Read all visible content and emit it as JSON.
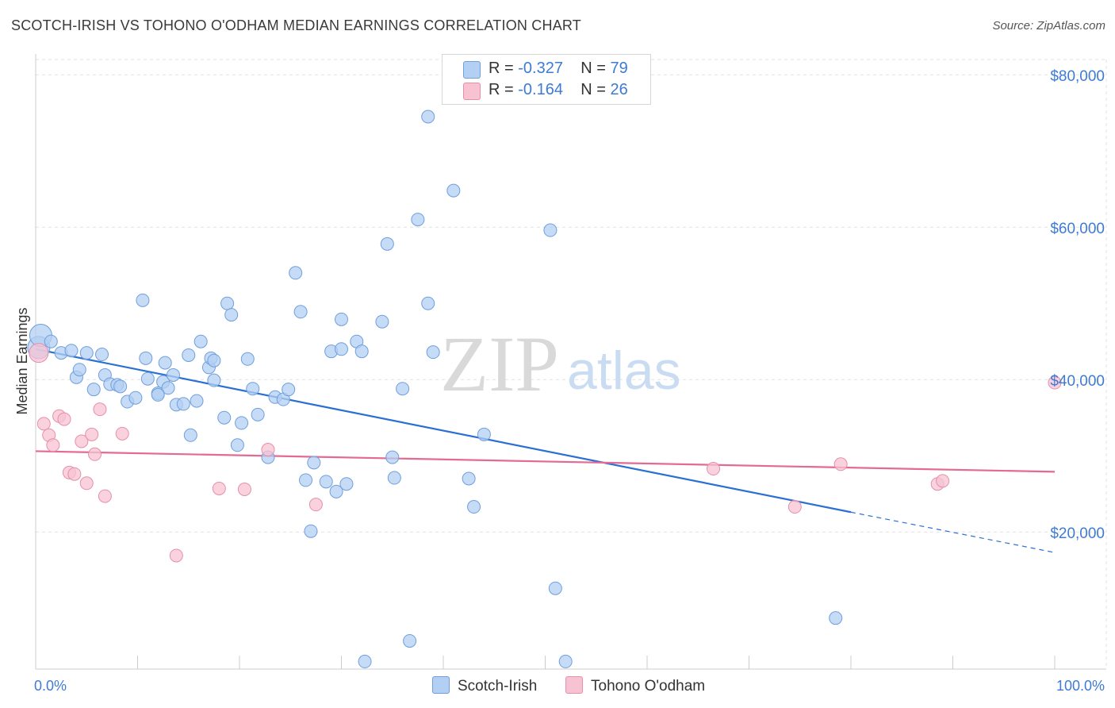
{
  "title": "SCOTCH-IRISH VS TOHONO O'ODHAM MEDIAN EARNINGS CORRELATION CHART",
  "source": "Source: ZipAtlas.com",
  "watermark": {
    "zip": "ZIP",
    "atlas": "atlas"
  },
  "legend": [
    {
      "r_label": "R =",
      "r_value": "-0.327",
      "n_label": "N =",
      "n_value": "79"
    },
    {
      "r_label": "R =",
      "r_value": "-0.164",
      "n_label": "N =",
      "n_value": "26"
    }
  ],
  "colors": {
    "blue_fill": "#b3cff3",
    "blue_stroke": "#6f9fdc",
    "blue_line": "#2a6fd4",
    "pink_fill": "#f7c3d3",
    "pink_stroke": "#e58fab",
    "pink_line": "#e36a92",
    "tick_text": "#3d7bd4"
  },
  "chart_data": {
    "type": "scatter",
    "title": "SCOTCH-IRISH VS TOHONO O'ODHAM MEDIAN EARNINGS CORRELATION CHART",
    "xlabel": "",
    "ylabel": "Median Earnings",
    "xlim": [
      0,
      100
    ],
    "ylim": [
      2000,
      82000
    ],
    "x_tick_labels": [
      "0.0%",
      "100.0%"
    ],
    "y_ticks": [
      20000,
      40000,
      60000,
      80000
    ],
    "y_tick_labels": [
      "$20,000",
      "$40,000",
      "$60,000",
      "$80,000"
    ],
    "grid": true,
    "legend_position": "top-center and bottom",
    "series": [
      {
        "name": "Scotch-Irish",
        "points": [
          [
            0.3,
            44200
          ],
          [
            0.5,
            45800
          ],
          [
            1.5,
            45000
          ],
          [
            2.5,
            43500
          ],
          [
            3.5,
            43800
          ],
          [
            4,
            40300
          ],
          [
            4.3,
            41300
          ],
          [
            5,
            43500
          ],
          [
            5.7,
            38700
          ],
          [
            6.5,
            43300
          ],
          [
            6.8,
            40600
          ],
          [
            7.3,
            39400
          ],
          [
            8,
            39300
          ],
          [
            8.3,
            39100
          ],
          [
            9,
            37100
          ],
          [
            9.8,
            37600
          ],
          [
            10.5,
            50400
          ],
          [
            10.8,
            42800
          ],
          [
            11,
            40100
          ],
          [
            12,
            38200
          ],
          [
            12.5,
            39700
          ],
          [
            12.7,
            42200
          ],
          [
            13,
            38900
          ],
          [
            13.5,
            40600
          ],
          [
            13.8,
            36700
          ],
          [
            14.5,
            36800
          ],
          [
            15,
            43200
          ],
          [
            15.2,
            32700
          ],
          [
            15.8,
            37200
          ],
          [
            16.2,
            45000
          ],
          [
            17,
            41600
          ],
          [
            17.2,
            42800
          ],
          [
            17.5,
            39900
          ],
          [
            18.5,
            35000
          ],
          [
            18.8,
            50000
          ],
          [
            19.2,
            48500
          ],
          [
            19.8,
            31400
          ],
          [
            20.2,
            34300
          ],
          [
            20.8,
            42700
          ],
          [
            21.3,
            38800
          ],
          [
            21.8,
            35400
          ],
          [
            22.8,
            29800
          ],
          [
            23.5,
            37700
          ],
          [
            24.3,
            37400
          ],
          [
            24.8,
            38700
          ],
          [
            25.5,
            54000
          ],
          [
            26,
            48900
          ],
          [
            26.5,
            26800
          ],
          [
            27,
            20100
          ],
          [
            27.3,
            29100
          ],
          [
            28.5,
            26600
          ],
          [
            29,
            43700
          ],
          [
            29.5,
            25300
          ],
          [
            30,
            47900
          ],
          [
            30.5,
            26300
          ],
          [
            31.5,
            45000
          ],
          [
            32,
            43700
          ],
          [
            32.3,
            3000
          ],
          [
            34,
            47600
          ],
          [
            34.5,
            57800
          ],
          [
            35,
            29800
          ],
          [
            35.2,
            27100
          ],
          [
            36,
            38800
          ],
          [
            36.7,
            5700
          ],
          [
            37.5,
            61000
          ],
          [
            38.5,
            50000
          ],
          [
            39,
            43600
          ],
          [
            41,
            64800
          ],
          [
            42.5,
            27000
          ],
          [
            43,
            23300
          ],
          [
            44,
            32800
          ],
          [
            50.5,
            59600
          ],
          [
            51,
            12600
          ],
          [
            52,
            3000
          ],
          [
            30,
            44000
          ],
          [
            78.5,
            8700
          ],
          [
            12,
            38000
          ],
          [
            17.5,
            42500
          ],
          [
            38.5,
            74500
          ]
        ],
        "trend": {
          "x": [
            0,
            80,
            100
          ],
          "y": [
            44000,
            22600,
            17300
          ],
          "solid_until": 80
        }
      },
      {
        "name": "Tohono O'odham",
        "points": [
          [
            0.3,
            43500
          ],
          [
            0.8,
            34200
          ],
          [
            1.3,
            32700
          ],
          [
            1.7,
            31400
          ],
          [
            2.3,
            35200
          ],
          [
            2.8,
            34800
          ],
          [
            3.3,
            27800
          ],
          [
            3.8,
            27600
          ],
          [
            4.5,
            31900
          ],
          [
            5,
            26400
          ],
          [
            5.5,
            32800
          ],
          [
            5.8,
            30200
          ],
          [
            6.3,
            36100
          ],
          [
            6.8,
            24700
          ],
          [
            8.5,
            32900
          ],
          [
            13.8,
            16900
          ],
          [
            18,
            25700
          ],
          [
            20.5,
            25600
          ],
          [
            22.8,
            30800
          ],
          [
            27.5,
            23600
          ],
          [
            66.5,
            28300
          ],
          [
            74.5,
            23300
          ],
          [
            79,
            28900
          ],
          [
            88.5,
            26300
          ],
          [
            89,
            26700
          ],
          [
            100,
            39600
          ]
        ],
        "trend": {
          "x": [
            0,
            100
          ],
          "y": [
            30600,
            27900
          ],
          "solid_until": 100
        }
      }
    ]
  }
}
